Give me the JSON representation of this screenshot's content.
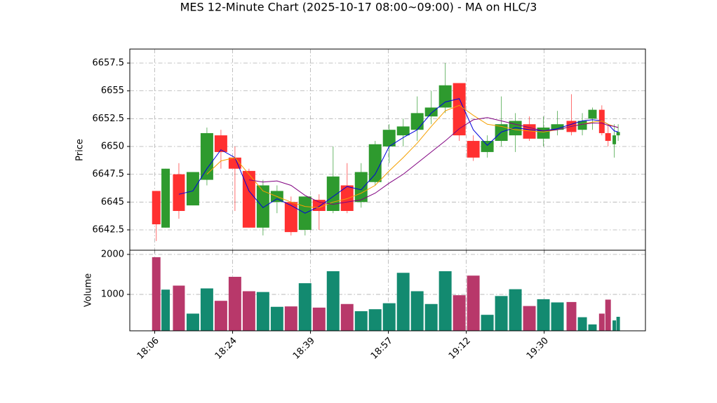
{
  "chart_data": [
    {
      "type": "candlestick",
      "title": "MES 12-Minute Chart (2025-10-17 08:00~09:00) - MA on HLC/3",
      "y_label": "Price",
      "up_color": "#2e9a2e",
      "down_color": "#ff3030",
      "x": [
        0.2,
        1.4,
        3.1,
        4.9,
        6.7,
        8.5,
        10.3,
        12.1,
        13.9,
        15.7,
        17.5,
        19.3,
        21.1,
        22.9,
        24.7,
        26.5,
        28.3,
        30.1,
        31.9,
        33.7,
        35.5,
        37.3,
        39.1,
        40.9,
        42.7,
        44.5,
        46.3,
        48.1,
        49.9,
        51.7,
        53.5,
        54.9,
        56.2,
        57.4,
        58.2,
        59.0,
        59.5
      ],
      "open": [
        6646,
        6642.7,
        6647.5,
        6644.7,
        6647,
        6651,
        6649,
        6647.8,
        6642.7,
        6645,
        6645,
        6642.5,
        6645.2,
        6644.2,
        6646.5,
        6645,
        6646.8,
        6650,
        6651,
        6651.5,
        6652.7,
        6653.5,
        6655.7,
        6650.5,
        6649.5,
        6650.5,
        6651,
        6652,
        6650.7,
        6651.5,
        6652.3,
        6651.5,
        6652.5,
        6653.3,
        6651.2,
        6650.2,
        6651
      ],
      "high": [
        6646,
        6648,
        6648.5,
        6647.7,
        6651.7,
        6651.5,
        6650,
        6648,
        6647,
        6646.5,
        6645.5,
        6645.5,
        6645.7,
        6650,
        6648.5,
        6648.5,
        6650.5,
        6652,
        6652.5,
        6654.5,
        6655,
        6657.5,
        6655.7,
        6651,
        6651,
        6654.5,
        6653,
        6652.7,
        6652.7,
        6653.2,
        6654.7,
        6653,
        6653.5,
        6653.7,
        6652,
        6652,
        6652
      ],
      "low": [
        6641.5,
        6642.7,
        6643.5,
        6644.7,
        6646.5,
        6648,
        6644.2,
        6642.7,
        6642,
        6644,
        6642,
        6642,
        6642.5,
        6644,
        6644,
        6644.5,
        6646.5,
        6648.5,
        6650,
        6650.5,
        6652,
        6653,
        6650.5,
        6648.7,
        6649,
        6650,
        6649.5,
        6650.5,
        6650,
        6651,
        6651,
        6651,
        6651.5,
        6651,
        6650,
        6649,
        6650.5
      ],
      "close": [
        6643,
        6648,
        6644.2,
        6647.7,
        6651.2,
        6649.5,
        6648,
        6642.7,
        6646.5,
        6646,
        6642.3,
        6645.5,
        6644.2,
        6647.3,
        6644.2,
        6647.7,
        6650.2,
        6651.5,
        6651.8,
        6653,
        6653.5,
        6655.5,
        6651,
        6649,
        6650.5,
        6652,
        6652.3,
        6650.7,
        6651.7,
        6652,
        6651.3,
        6652.3,
        6653.3,
        6651.2,
        6650.5,
        6651,
        6651.3
      ],
      "series": [
        {
          "color": "#0000dd",
          "values": [
            null,
            null,
            6645.7,
            6646.0,
            6648.0,
            6649.7,
            6649.0,
            6646.0,
            6644.5,
            6645.3,
            6644.7,
            6644.0,
            6644.6,
            6645.5,
            6646.4,
            6646.1,
            6647.5,
            6650.0,
            6650.8,
            6651.5,
            6653.0,
            6654.0,
            6654.3,
            6651.5,
            6650.1,
            6651.3,
            6651.7,
            6651.5,
            6651.4,
            6651.6,
            6652.0,
            6652.3,
            6652.4,
            6652.3,
            6652.0,
            6651.4,
            6651.3
          ]
        },
        {
          "color": "#f5a000",
          "values": [
            null,
            null,
            null,
            null,
            6647.5,
            6648.7,
            6649.0,
            6647.5,
            6646.0,
            6645.5,
            6645.0,
            6644.6,
            6644.5,
            6645.0,
            6645.3,
            6645.8,
            6646.5,
            6647.8,
            6649.0,
            6650.3,
            6651.8,
            6653.2,
            6653.7,
            6652.8,
            6652.0,
            6651.8,
            6651.5,
            6651.4,
            6651.3,
            6651.5,
            6651.8,
            6652.0,
            6652.2,
            6652.3,
            6652.0,
            6651.8,
            6651.7
          ]
        },
        {
          "color": "#800080",
          "values": [
            null,
            null,
            null,
            null,
            null,
            null,
            null,
            6647.0,
            6646.8,
            6646.9,
            6646.5,
            6645.6,
            6645.0,
            6644.8,
            6645.0,
            6645.2,
            6645.8,
            6646.7,
            6647.5,
            6648.5,
            6649.5,
            6650.5,
            6651.6,
            6652.4,
            6652.6,
            6652.3,
            6652.0,
            6651.7,
            6651.4,
            6651.5,
            6651.8,
            6652.0,
            6652.1,
            6652.1,
            6651.9,
            6651.8,
            6651.7
          ]
        }
      ],
      "xlim": [
        -3.2,
        63
      ],
      "ylim": [
        6640.67,
        6658.76
      ],
      "yticks": [
        6642.5,
        6645.0,
        6647.5,
        6650.0,
        6652.5,
        6655.0,
        6657.5
      ],
      "grid": true
    },
    {
      "type": "volume",
      "y_label": "Volume",
      "up_color": "#138a70",
      "down_color": "#b8386a",
      "x": [
        0.2,
        1.4,
        3.1,
        4.9,
        6.7,
        8.5,
        10.3,
        12.1,
        13.9,
        15.7,
        17.5,
        19.3,
        21.1,
        22.9,
        24.7,
        26.5,
        28.3,
        30.1,
        31.9,
        33.7,
        35.5,
        37.3,
        39.1,
        40.9,
        42.7,
        44.5,
        46.3,
        48.1,
        49.9,
        51.7,
        53.5,
        54.9,
        56.2,
        57.4,
        58.2,
        59.0,
        59.5
      ],
      "values": [
        1930,
        1120,
        1220,
        520,
        1150,
        840,
        1440,
        1080,
        1060,
        690,
        700,
        1280,
        670,
        1580,
        760,
        580,
        630,
        780,
        1540,
        1080,
        760,
        1580,
        980,
        1470,
        490,
        960,
        1130,
        710,
        880,
        800,
        810,
        430,
        250,
        520,
        870,
        350,
        440
      ],
      "up": [
        false,
        true,
        false,
        true,
        true,
        false,
        false,
        false,
        true,
        true,
        false,
        true,
        false,
        true,
        false,
        true,
        true,
        true,
        true,
        true,
        true,
        true,
        false,
        false,
        true,
        true,
        true,
        false,
        true,
        true,
        false,
        true,
        true,
        false,
        false,
        true,
        true
      ],
      "xlim": [
        -3.2,
        63
      ],
      "ylim": [
        90,
        2105
      ],
      "yticks": [
        1000,
        2000
      ],
      "xticks": [
        {
          "value": 0,
          "label": "18:06"
        },
        {
          "value": 10,
          "label": "18:24"
        },
        {
          "value": 20,
          "label": "18:39"
        },
        {
          "value": 30,
          "label": "18:57"
        },
        {
          "value": 40,
          "label": "19:12"
        },
        {
          "value": 50,
          "label": "19:30"
        }
      ],
      "grid": true
    }
  ]
}
